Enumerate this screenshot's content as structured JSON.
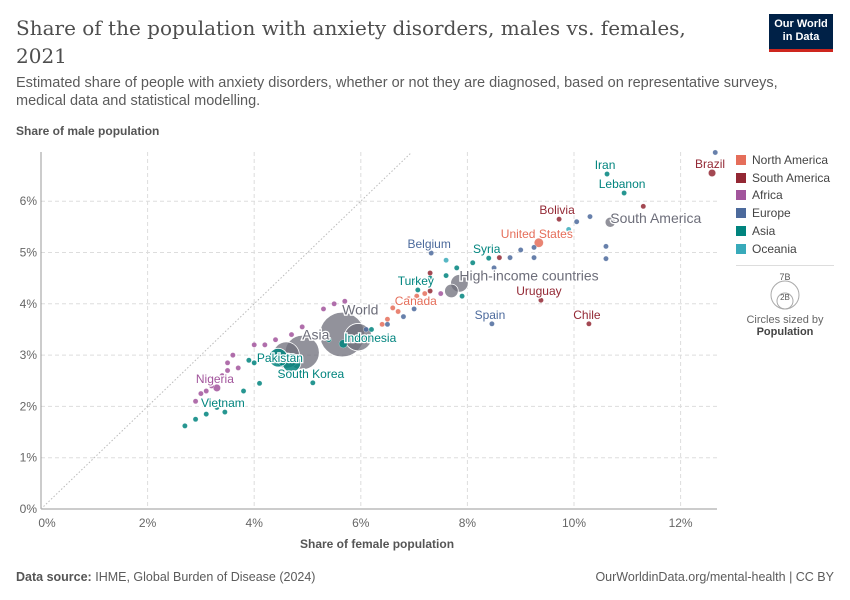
{
  "header": {
    "title": "Share of the population with anxiety disorders, males vs. females, 2021",
    "subtitle": "Estimated share of people with anxiety disorders, whether or not they are diagnosed, based on representative surveys, medical data and statistical modelling.",
    "logo": "Our World in Data"
  },
  "footer": {
    "source_label": "Data source:",
    "source": "IHME, Global Burden of Disease (2024)",
    "url": "OurWorldinData.org/mental-health | CC BY"
  },
  "size_legend": {
    "big": "7B",
    "small": "2B",
    "caption": "Circles sized by",
    "variable": "Population"
  },
  "chart_data": {
    "type": "scatter",
    "title": "Share of the population with anxiety disorders, males vs. females, 2021",
    "xlabel": "Share of female population",
    "ylabel": "Share of male population",
    "xlim": [
      0,
      12.7
    ],
    "ylim": [
      0,
      6.96
    ],
    "xticks": [
      "0%",
      "2%",
      "4%",
      "6%",
      "8%",
      "10%",
      "12%"
    ],
    "yticks": [
      "0%",
      "1%",
      "2%",
      "3%",
      "4%",
      "5%",
      "6%"
    ],
    "grid": true,
    "legend_position": "right",
    "reference_line": "y = x",
    "legend": [
      {
        "name": "North America",
        "color": "#e56e5a"
      },
      {
        "name": "South America",
        "color": "#932834"
      },
      {
        "name": "Africa",
        "color": "#a2559c"
      },
      {
        "name": "Europe",
        "color": "#4c6a9c"
      },
      {
        "name": "Asia",
        "color": "#00847e"
      },
      {
        "name": "Oceania",
        "color": "#38aaba"
      }
    ],
    "aggregate_color": "#6d6e7a",
    "points": [
      {
        "label": "World",
        "x": 5.65,
        "y": 3.4,
        "region": "aggregate",
        "pop": 8000
      },
      {
        "label": "Asia",
        "x": 4.9,
        "y": 3.05,
        "region": "aggregate",
        "pop": 4700
      },
      {
        "label": "",
        "x": 5.95,
        "y": 3.35,
        "region": "aggregate",
        "pop": 3000
      },
      {
        "label": "",
        "x": 4.6,
        "y": 3.0,
        "region": "aggregate",
        "pop": 2800
      },
      {
        "label": "High-income countries",
        "x": 7.85,
        "y": 4.4,
        "region": "aggregate",
        "pop": 1250
      },
      {
        "label": "",
        "x": 7.7,
        "y": 4.25,
        "region": "aggregate",
        "pop": 750
      },
      {
        "label": "South America",
        "x": 10.68,
        "y": 5.59,
        "region": "aggregate",
        "pop": 430
      },
      {
        "label": "",
        "x": 4.7,
        "y": 2.85,
        "region": "Asia",
        "pop": 1400
      },
      {
        "label": "",
        "x": 4.45,
        "y": 2.95,
        "region": "Asia",
        "pop": 1400
      },
      {
        "label": "Brazil",
        "x": 12.59,
        "y": 6.55,
        "region": "South America",
        "pop": 215
      },
      {
        "label": "Iran",
        "x": 10.62,
        "y": 6.53,
        "region": "Asia",
        "pop": 88
      },
      {
        "label": "Lebanon",
        "x": 10.94,
        "y": 6.16,
        "region": "Asia",
        "pop": 6
      },
      {
        "label": "Bolivia",
        "x": 9.72,
        "y": 5.65,
        "region": "South America",
        "pop": 12
      },
      {
        "label": "United States",
        "x": 9.34,
        "y": 5.19,
        "region": "North America",
        "pop": 335
      },
      {
        "label": "Belgium",
        "x": 7.32,
        "y": 4.99,
        "region": "Europe",
        "pop": 12
      },
      {
        "label": "Syria",
        "x": 8.4,
        "y": 4.89,
        "region": "Asia",
        "pop": 21
      },
      {
        "label": "Turkey",
        "x": 7.07,
        "y": 4.27,
        "region": "Asia",
        "pop": 85
      },
      {
        "label": "Canada",
        "x": 6.6,
        "y": 3.92,
        "region": "North America",
        "pop": 38
      },
      {
        "label": "Uruguay",
        "x": 9.38,
        "y": 4.07,
        "region": "South America",
        "pop": 3.4
      },
      {
        "label": "Spain",
        "x": 8.46,
        "y": 3.61,
        "region": "Europe",
        "pop": 47
      },
      {
        "label": "Chile",
        "x": 10.28,
        "y": 3.61,
        "region": "South America",
        "pop": 19
      },
      {
        "label": "Indonesia",
        "x": 5.67,
        "y": 3.22,
        "region": "Asia",
        "pop": 275
      },
      {
        "label": "Pakistan",
        "x": 4.52,
        "y": 2.87,
        "region": "Asia",
        "pop": 230
      },
      {
        "label": "South Korea",
        "x": 5.1,
        "y": 2.46,
        "region": "Asia",
        "pop": 52
      },
      {
        "label": "Nigeria",
        "x": 3.3,
        "y": 2.36,
        "region": "Africa",
        "pop": 215
      },
      {
        "label": "Vietnam",
        "x": 3.45,
        "y": 1.89,
        "region": "Asia",
        "pop": 98
      },
      {
        "label": "",
        "x": 3.1,
        "y": 2.3,
        "region": "Africa",
        "pop": 20
      },
      {
        "label": "",
        "x": 3.2,
        "y": 2.4,
        "region": "Africa",
        "pop": 20
      },
      {
        "label": "",
        "x": 3.4,
        "y": 2.6,
        "region": "Africa",
        "pop": 20
      },
      {
        "label": "",
        "x": 3.5,
        "y": 2.7,
        "region": "Africa",
        "pop": 20
      },
      {
        "label": "",
        "x": 3.7,
        "y": 2.75,
        "region": "Africa",
        "pop": 20
      },
      {
        "label": "",
        "x": 3.5,
        "y": 2.85,
        "region": "Africa",
        "pop": 20
      },
      {
        "label": "",
        "x": 3.6,
        "y": 3.0,
        "region": "Africa",
        "pop": 20
      },
      {
        "label": "",
        "x": 4.0,
        "y": 3.2,
        "region": "Africa",
        "pop": 20
      },
      {
        "label": "",
        "x": 4.2,
        "y": 3.2,
        "region": "Africa",
        "pop": 20
      },
      {
        "label": "",
        "x": 4.4,
        "y": 3.3,
        "region": "Africa",
        "pop": 20
      },
      {
        "label": "",
        "x": 4.7,
        "y": 3.4,
        "region": "Africa",
        "pop": 20
      },
      {
        "label": "",
        "x": 4.9,
        "y": 3.55,
        "region": "Africa",
        "pop": 20
      },
      {
        "label": "",
        "x": 5.3,
        "y": 3.9,
        "region": "Africa",
        "pop": 20
      },
      {
        "label": "",
        "x": 5.5,
        "y": 4.0,
        "region": "Africa",
        "pop": 20
      },
      {
        "label": "",
        "x": 5.7,
        "y": 4.05,
        "region": "Africa",
        "pop": 20
      },
      {
        "label": "",
        "x": 2.9,
        "y": 2.1,
        "region": "Africa",
        "pop": 20
      },
      {
        "label": "",
        "x": 3.0,
        "y": 2.25,
        "region": "Africa",
        "pop": 20
      },
      {
        "label": "",
        "x": 7.5,
        "y": 4.2,
        "region": "Africa",
        "pop": 20
      },
      {
        "label": "",
        "x": 2.7,
        "y": 1.62,
        "region": "Asia",
        "pop": 15
      },
      {
        "label": "",
        "x": 2.9,
        "y": 1.75,
        "region": "Asia",
        "pop": 15
      },
      {
        "label": "",
        "x": 3.1,
        "y": 1.85,
        "region": "Asia",
        "pop": 15
      },
      {
        "label": "",
        "x": 3.3,
        "y": 1.98,
        "region": "Asia",
        "pop": 15
      },
      {
        "label": "",
        "x": 3.8,
        "y": 2.3,
        "region": "Asia",
        "pop": 15
      },
      {
        "label": "",
        "x": 4.5,
        "y": 2.6,
        "region": "Asia",
        "pop": 15
      },
      {
        "label": "",
        "x": 4.1,
        "y": 2.45,
        "region": "Asia",
        "pop": 15
      },
      {
        "label": "",
        "x": 3.9,
        "y": 2.9,
        "region": "Asia",
        "pop": 15
      },
      {
        "label": "",
        "x": 5.4,
        "y": 3.3,
        "region": "Asia",
        "pop": 15
      },
      {
        "label": "",
        "x": 6.2,
        "y": 3.5,
        "region": "Asia",
        "pop": 15
      },
      {
        "label": "",
        "x": 7.3,
        "y": 4.5,
        "region": "Asia",
        "pop": 15
      },
      {
        "label": "",
        "x": 7.6,
        "y": 4.55,
        "region": "Asia",
        "pop": 15
      },
      {
        "label": "",
        "x": 7.9,
        "y": 4.15,
        "region": "Asia",
        "pop": 15
      },
      {
        "label": "",
        "x": 8.1,
        "y": 4.8,
        "region": "Asia",
        "pop": 15
      },
      {
        "label": "",
        "x": 7.8,
        "y": 4.7,
        "region": "Asia",
        "pop": 15
      },
      {
        "label": "",
        "x": 4.0,
        "y": 2.85,
        "region": "Asia",
        "pop": 15
      },
      {
        "label": "",
        "x": 6.5,
        "y": 3.6,
        "region": "Europe",
        "pop": 10
      },
      {
        "label": "",
        "x": 6.8,
        "y": 3.75,
        "region": "Europe",
        "pop": 10
      },
      {
        "label": "",
        "x": 6.3,
        "y": 3.35,
        "region": "Europe",
        "pop": 10
      },
      {
        "label": "",
        "x": 6.1,
        "y": 3.5,
        "region": "Europe",
        "pop": 10
      },
      {
        "label": "",
        "x": 8.8,
        "y": 4.9,
        "region": "Europe",
        "pop": 10
      },
      {
        "label": "",
        "x": 9.0,
        "y": 5.05,
        "region": "Europe",
        "pop": 10
      },
      {
        "label": "",
        "x": 9.25,
        "y": 5.1,
        "region": "Europe",
        "pop": 10
      },
      {
        "label": "",
        "x": 9.25,
        "y": 4.9,
        "region": "Europe",
        "pop": 10
      },
      {
        "label": "",
        "x": 10.3,
        "y": 5.7,
        "region": "Europe",
        "pop": 10
      },
      {
        "label": "",
        "x": 10.05,
        "y": 5.6,
        "region": "Europe",
        "pop": 10
      },
      {
        "label": "",
        "x": 10.6,
        "y": 5.12,
        "region": "Europe",
        "pop": 10
      },
      {
        "label": "",
        "x": 10.6,
        "y": 4.88,
        "region": "Europe",
        "pop": 10
      },
      {
        "label": "",
        "x": 12.65,
        "y": 6.95,
        "region": "Europe",
        "pop": 10
      },
      {
        "label": "",
        "x": 8.5,
        "y": 4.7,
        "region": "Europe",
        "pop": 10
      },
      {
        "label": "",
        "x": 7.0,
        "y": 3.9,
        "region": "Europe",
        "pop": 10
      },
      {
        "label": "",
        "x": 6.5,
        "y": 3.7,
        "region": "North America",
        "pop": 10
      },
      {
        "label": "",
        "x": 6.7,
        "y": 3.85,
        "region": "North America",
        "pop": 10
      },
      {
        "label": "",
        "x": 6.9,
        "y": 4.1,
        "region": "North America",
        "pop": 10
      },
      {
        "label": "",
        "x": 7.05,
        "y": 4.15,
        "region": "North America",
        "pop": 10
      },
      {
        "label": "",
        "x": 7.2,
        "y": 4.2,
        "region": "North America",
        "pop": 10
      },
      {
        "label": "",
        "x": 6.4,
        "y": 3.6,
        "region": "North America",
        "pop": 10
      },
      {
        "label": "",
        "x": 7.3,
        "y": 4.6,
        "region": "South America",
        "pop": 10
      },
      {
        "label": "",
        "x": 8.6,
        "y": 4.9,
        "region": "South America",
        "pop": 10
      },
      {
        "label": "",
        "x": 11.3,
        "y": 5.9,
        "region": "South America",
        "pop": 10
      },
      {
        "label": "",
        "x": 7.3,
        "y": 4.25,
        "region": "South America",
        "pop": 10
      },
      {
        "label": "",
        "x": 7.6,
        "y": 4.85,
        "region": "Oceania",
        "pop": 10
      },
      {
        "label": "",
        "x": 9.9,
        "y": 5.45,
        "region": "Oceania",
        "pop": 10
      },
      {
        "label": "",
        "x": 7.0,
        "y": 4.45,
        "region": "Oceania",
        "pop": 10
      }
    ]
  }
}
